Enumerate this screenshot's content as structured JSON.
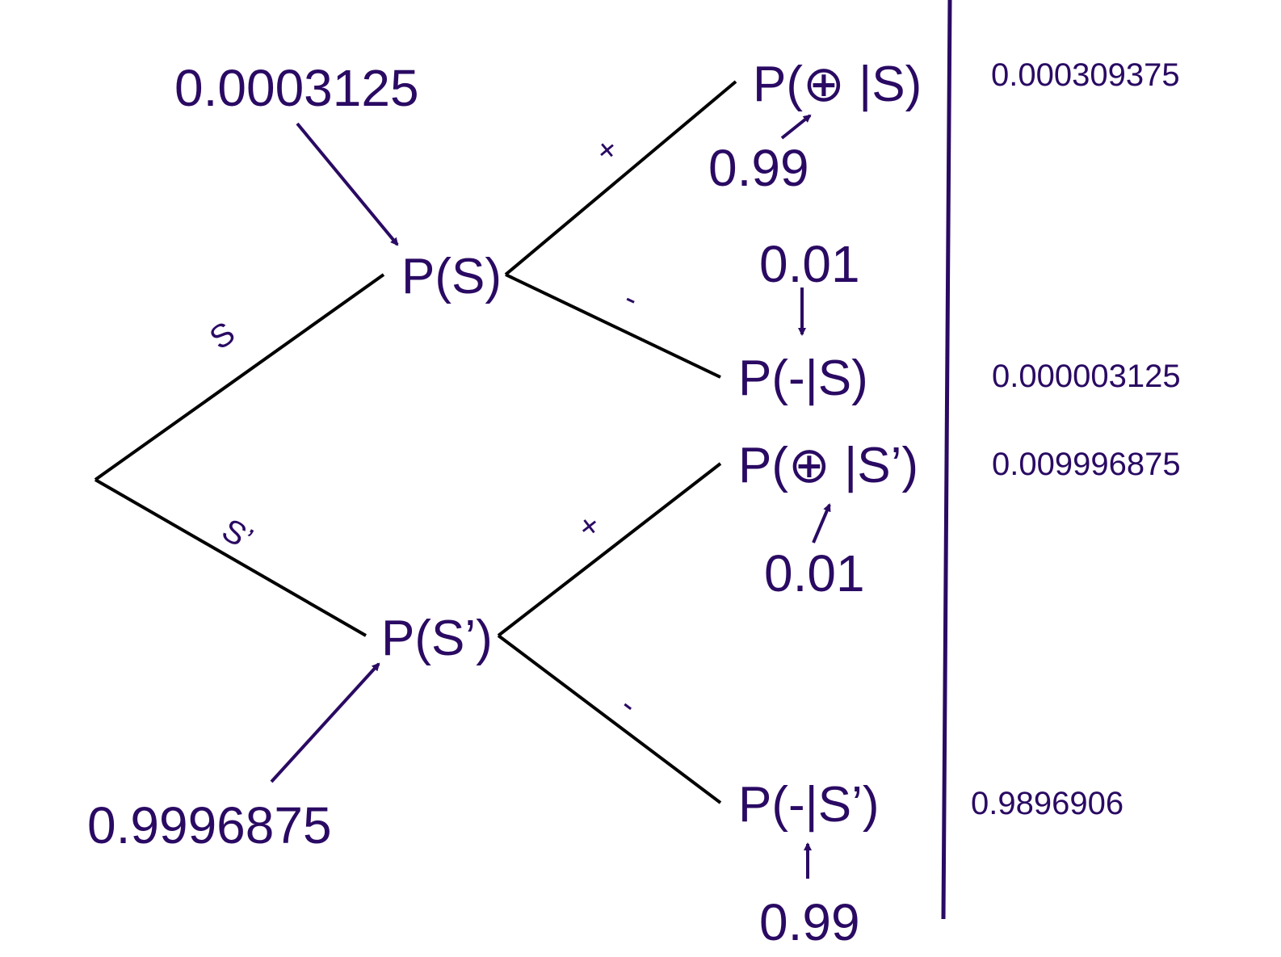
{
  "colors": {
    "branch": "#000000",
    "accent": "#2a0a63"
  },
  "root_branches": {
    "upper": "S",
    "lower": "S’"
  },
  "nodes": {
    "ps": "P(S)",
    "psp": "P(S’)",
    "pos_s": "P(⊕ |S)",
    "neg_s": "P(-|S)",
    "pos_sp": "P(⊕ |S’)",
    "neg_sp": "P(-|S’)"
  },
  "branch_signs": {
    "plus": "+",
    "minus": "-"
  },
  "probabilities": {
    "ps": "0.0003125",
    "psp": "0.9996875",
    "pos_given_s": "0.99",
    "neg_given_s": "0.01",
    "pos_given_sp": "0.01",
    "neg_given_sp": "0.99"
  },
  "results": {
    "pos_s": "0.000309375",
    "neg_s": "0.000003125",
    "pos_sp": "0.009996875",
    "neg_sp": "0.9896906"
  }
}
